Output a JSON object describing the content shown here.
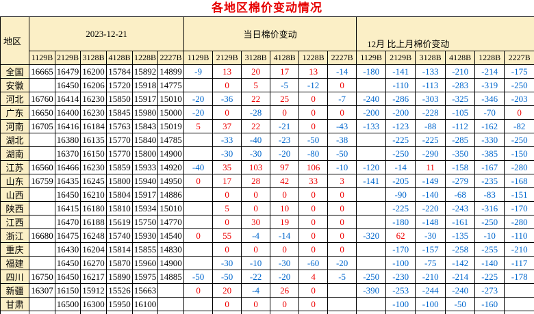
{
  "title": "各地区棉价变动情况",
  "colors": {
    "header_bg": "#fbefc6",
    "title_red": "#e60000",
    "positive_change": "#ee0000",
    "negative_change": "#0066cc",
    "price_text": "#000000",
    "border": "#000000"
  },
  "table": {
    "region_header": "地区",
    "groups": [
      {
        "label": "2023-12-21",
        "codes": [
          "1129B",
          "2129B",
          "3128B",
          "4128B",
          "1228B",
          "2227B"
        ]
      },
      {
        "label": "当日棉价变动",
        "codes": [
          "1129B",
          "2129B",
          "3128B",
          "4128B",
          "1228B",
          "2227B"
        ]
      },
      {
        "label": "12月 比上月棉价变动",
        "codes": [
          "1129B",
          "2129B",
          "3128B",
          "4128B",
          "1228B",
          "2227B"
        ]
      }
    ],
    "rows": [
      {
        "region": "全国",
        "prices": [
          "16665",
          "16479",
          "16200",
          "15784",
          "15892",
          "14899"
        ],
        "daily": [
          "-9",
          "13",
          "20",
          "17",
          "13",
          "-14"
        ],
        "monthly": [
          "-180",
          "-141",
          "-133",
          "-210",
          "-214",
          "-175"
        ]
      },
      {
        "region": "安徽",
        "prices": [
          "",
          "16450",
          "16206",
          "15720",
          "15918",
          "14775"
        ],
        "daily": [
          "",
          "0",
          "5",
          "-5",
          "-12",
          "0"
        ],
        "monthly": [
          "",
          "-110",
          "-113",
          "-283",
          "-319",
          "-250"
        ]
      },
      {
        "region": "河北",
        "prices": [
          "16760",
          "16414",
          "16230",
          "15850",
          "15917",
          "15010"
        ],
        "daily": [
          "-20",
          "-36",
          "22",
          "25",
          "0",
          "-7"
        ],
        "monthly": [
          "-240",
          "-286",
          "-303",
          "-325",
          "-346",
          "-203"
        ]
      },
      {
        "region": "广东",
        "prices": [
          "16650",
          "16400",
          "16230",
          "15845",
          "15980",
          "15000"
        ],
        "daily": [
          "-20",
          "0",
          "-28",
          "0",
          "0",
          "0"
        ],
        "monthly": [
          "-200",
          "-200",
          "-228",
          "-105",
          "-70",
          "0"
        ]
      },
      {
        "region": "河南",
        "prices": [
          "16705",
          "16416",
          "16184",
          "15763",
          "15843",
          "15019"
        ],
        "daily": [
          "5",
          "37",
          "22",
          "-21",
          "0",
          "-43"
        ],
        "monthly": [
          "-133",
          "-123",
          "-88",
          "-112",
          "-162",
          "-82"
        ]
      },
      {
        "region": "湖北",
        "prices": [
          "",
          "16380",
          "16135",
          "15770",
          "15840",
          "14785"
        ],
        "daily": [
          "",
          "-33",
          "-40",
          "-23",
          "-50",
          "-38"
        ],
        "monthly": [
          "",
          "-225",
          "-225",
          "-285",
          "-330",
          "-250"
        ]
      },
      {
        "region": "湖南",
        "prices": [
          "",
          "16370",
          "16150",
          "15770",
          "15800",
          "14900"
        ],
        "daily": [
          "",
          "-30",
          "-30",
          "-20",
          "-80",
          "-50"
        ],
        "monthly": [
          "",
          "-250",
          "-290",
          "-350",
          "-385",
          "-150"
        ]
      },
      {
        "region": "江苏",
        "prices": [
          "16560",
          "16466",
          "16230",
          "15859",
          "15933",
          "14920"
        ],
        "daily": [
          "-40",
          "35",
          "103",
          "97",
          "106",
          "-10"
        ],
        "monthly": [
          "-120",
          "-14",
          "11",
          "-158",
          "-167",
          "-280"
        ]
      },
      {
        "region": "山东",
        "prices": [
          "16759",
          "16435",
          "16245",
          "15800",
          "15940",
          "14950"
        ],
        "daily": [
          "0",
          "17",
          "28",
          "42",
          "33",
          "3"
        ],
        "monthly": [
          "-141",
          "-205",
          "-149",
          "-279",
          "-235",
          "-168"
        ]
      },
      {
        "region": "山西",
        "prices": [
          "",
          "16450",
          "16210",
          "15804",
          "15917",
          "14886"
        ],
        "daily": [
          "",
          "0",
          "0",
          "0",
          "0",
          "0"
        ],
        "monthly": [
          "",
          "-90",
          "-140",
          "-68",
          "-83",
          "-151"
        ]
      },
      {
        "region": "陕西",
        "prices": [
          "",
          "16415",
          "16180",
          "15810",
          "15934",
          "15010"
        ],
        "daily": [
          "",
          "5",
          "0",
          "10",
          "0",
          "0"
        ],
        "monthly": [
          "",
          "-225",
          "-220",
          "-243",
          "-316",
          "-170"
        ]
      },
      {
        "region": "江西",
        "prices": [
          "",
          "16470",
          "16188",
          "15619",
          "15750",
          "14770"
        ],
        "daily": [
          "",
          "0",
          "30",
          "19",
          "0",
          "0"
        ],
        "monthly": [
          "",
          "-180",
          "-148",
          "-161",
          "-250",
          "-280"
        ]
      },
      {
        "region": "浙江",
        "prices": [
          "16680",
          "16475",
          "16248",
          "15740",
          "15930",
          "14540"
        ],
        "daily": [
          "0",
          "55",
          "-4",
          "-14",
          "0",
          "0"
        ],
        "monthly": [
          "-320",
          "62",
          "-30",
          "-135",
          "-10",
          "-110"
        ]
      },
      {
        "region": "重庆",
        "prices": [
          "",
          "16430",
          "16204",
          "15814",
          "15855",
          "14830"
        ],
        "daily": [
          "",
          "0",
          "0",
          "0",
          "0",
          "0"
        ],
        "monthly": [
          "",
          "-170",
          "-157",
          "-258",
          "-255",
          "-210"
        ]
      },
      {
        "region": "福建",
        "prices": [
          "",
          "16450",
          "16270",
          "15870",
          "15960",
          "14900"
        ],
        "daily": [
          "",
          "-30",
          "-10",
          "-30",
          "-60",
          "-20"
        ],
        "monthly": [
          "",
          "-100",
          "-75",
          "-142",
          "-140",
          "-117"
        ]
      },
      {
        "region": "四川",
        "prices": [
          "16750",
          "16450",
          "16217",
          "15890",
          "15975",
          "14885"
        ],
        "daily": [
          "-50",
          "-50",
          "-22",
          "-20",
          "4",
          "-5"
        ],
        "monthly": [
          "-250",
          "-230",
          "-210",
          "-214",
          "-225",
          "-178"
        ]
      },
      {
        "region": "新疆",
        "prices": [
          "16307",
          "16150",
          "15912",
          "15526",
          "15663",
          ""
        ],
        "daily": [
          "0",
          "20",
          "-4",
          "26",
          "0",
          ""
        ],
        "monthly": [
          "-390",
          "-253",
          "-244",
          "-240",
          "-273",
          ""
        ]
      },
      {
        "region": "甘肃",
        "prices": [
          "",
          "16500",
          "16300",
          "15950",
          "16100",
          ""
        ],
        "daily": [
          "",
          "0",
          "0",
          "0",
          "0",
          ""
        ],
        "monthly": [
          "",
          "-100",
          "-100",
          "-50",
          "-160",
          ""
        ]
      }
    ]
  }
}
